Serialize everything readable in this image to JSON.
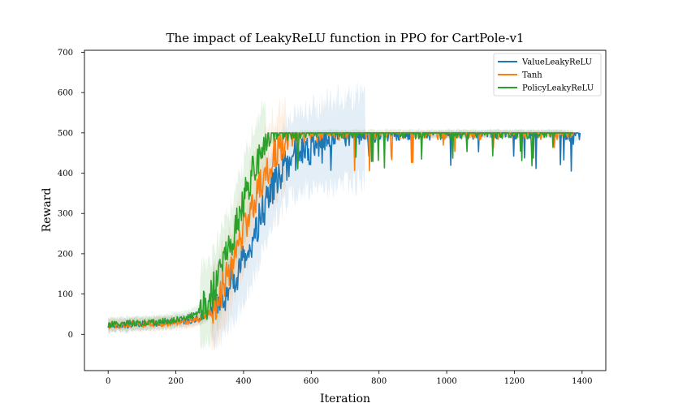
{
  "chart_data": {
    "type": "line",
    "title": "The impact of LeakyReLU function in PPO for CartPole-v1",
    "xlabel": "Iteration",
    "ylabel": "Reward",
    "xlim": [
      -70,
      1470
    ],
    "ylim": [
      -90,
      705
    ],
    "xticks": [
      0,
      200,
      400,
      600,
      800,
      1000,
      1200,
      1400
    ],
    "yticks": [
      0,
      100,
      200,
      300,
      400,
      500,
      600,
      700
    ],
    "xtick_labels": [
      "0",
      "200",
      "400",
      "600",
      "800",
      "1000",
      "1200",
      "1400"
    ],
    "ytick_labels": [
      "0",
      "100",
      "200",
      "300",
      "400",
      "500",
      "600",
      "700"
    ],
    "grid": false,
    "legend_position": "top-right",
    "series": [
      {
        "name": "ValueLeakyReLU",
        "color": "#1f77b4",
        "x": [
          0,
          25,
          50,
          75,
          100,
          125,
          150,
          175,
          200,
          225,
          250,
          275,
          300,
          325,
          350,
          375,
          400,
          425,
          450,
          475,
          500,
          525,
          550,
          575,
          600,
          625,
          650,
          675,
          700,
          725,
          750,
          800,
          850,
          900,
          950,
          1000,
          1050,
          1100,
          1150,
          1200,
          1250,
          1300,
          1350,
          1375,
          1395
        ],
        "y": [
          22,
          24,
          23,
          25,
          26,
          27,
          28,
          30,
          31,
          33,
          36,
          42,
          55,
          75,
          105,
          140,
          180,
          230,
          290,
          345,
          390,
          425,
          445,
          455,
          462,
          468,
          472,
          476,
          480,
          484,
          487,
          490,
          492,
          494,
          495,
          496,
          497,
          497,
          498,
          498,
          498,
          498,
          497,
          480,
          500
        ]
      },
      {
        "name": "Tanh",
        "color": "#ff7f0e",
        "x": [
          0,
          25,
          50,
          75,
          100,
          125,
          150,
          175,
          200,
          225,
          250,
          275,
          300,
          325,
          350,
          375,
          400,
          425,
          450,
          475,
          500,
          525,
          550,
          575,
          600,
          625,
          650,
          675,
          700,
          725,
          750,
          800,
          850,
          900,
          950,
          1000,
          1050,
          1100,
          1150,
          1200,
          1250,
          1300,
          1350,
          1375
        ],
        "y": [
          22,
          23,
          24,
          25,
          25,
          26,
          27,
          28,
          29,
          31,
          34,
          40,
          55,
          90,
          140,
          200,
          260,
          320,
          375,
          420,
          452,
          470,
          480,
          485,
          488,
          490,
          492,
          493,
          494,
          494,
          495,
          495,
          496,
          496,
          496,
          496,
          496,
          495,
          496,
          496,
          496,
          496,
          496,
          496
        ]
      },
      {
        "name": "PolicyLeakyReLU",
        "color": "#2ca02c",
        "x": [
          0,
          25,
          50,
          75,
          100,
          125,
          150,
          175,
          200,
          225,
          250,
          275,
          300,
          325,
          350,
          375,
          400,
          425,
          450,
          475,
          500,
          525,
          550,
          575,
          600,
          625,
          650,
          675,
          700,
          725,
          750,
          800,
          850,
          900,
          950,
          1000,
          1050,
          1100,
          1150,
          1200,
          1250,
          1300,
          1350,
          1375
        ],
        "y": [
          24,
          25,
          26,
          27,
          28,
          29,
          31,
          33,
          36,
          40,
          48,
          62,
          90,
          135,
          190,
          255,
          330,
          400,
          450,
          478,
          488,
          493,
          495,
          496,
          497,
          497,
          498,
          498,
          498,
          498,
          498,
          499,
          499,
          499,
          499,
          499,
          499,
          499,
          499,
          499,
          499,
          498,
          498,
          498
        ]
      }
    ]
  }
}
